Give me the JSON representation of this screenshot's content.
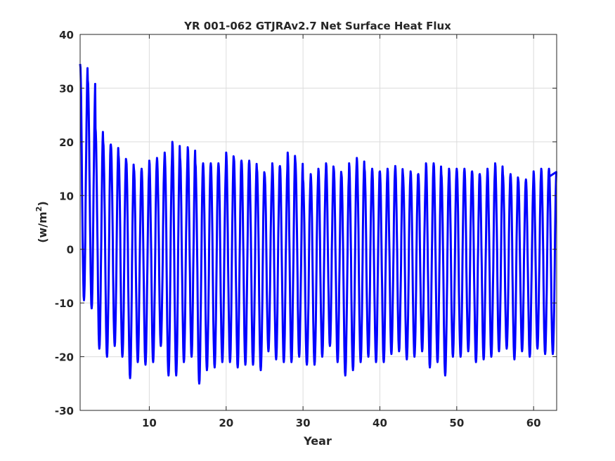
{
  "chart_data": {
    "type": "line",
    "title": "YR 001-062 GTJRAv2.7 Net Surface Heat Flux",
    "xlabel": "Year",
    "ylabel_base": "(w/m",
    "ylabel_sup": "2",
    "ylabel_close": ")",
    "xlim": [
      1,
      63
    ],
    "ylim": [
      -30,
      40
    ],
    "x_ticks": [
      10,
      20,
      30,
      40,
      50,
      60
    ],
    "x_tick_labels": [
      "10",
      "20",
      "30",
      "40",
      "50",
      "60"
    ],
    "y_ticks": [
      -30,
      -20,
      -10,
      0,
      10,
      20,
      30,
      40
    ],
    "y_tick_labels": [
      "-30",
      "-20",
      "-10",
      "0",
      "10",
      "20",
      "30",
      "40"
    ],
    "grid": true,
    "line_color": "#0000ff",
    "series": [
      {
        "years": [
          1,
          2,
          3,
          4,
          5,
          6,
          7,
          8,
          9,
          10,
          11,
          12,
          13,
          14,
          15,
          16,
          17,
          18,
          19,
          20,
          21,
          22,
          23,
          24,
          25,
          26,
          27,
          28,
          29,
          30,
          31,
          32,
          33,
          34,
          35,
          36,
          37,
          38,
          39,
          40,
          41,
          42,
          43,
          44,
          45,
          46,
          47,
          48,
          49,
          50,
          51,
          52,
          53,
          54,
          55,
          56,
          57,
          58,
          59,
          60,
          61,
          62
        ],
        "annual_max": [
          34.5,
          31.5,
          22.5,
          20,
          19.5,
          17.5,
          16.5,
          15,
          15,
          16.5,
          17,
          18,
          20,
          17,
          19,
          16,
          16,
          16,
          16,
          18,
          17,
          16.5,
          16.5,
          15,
          14,
          16,
          15.5,
          18,
          16.5,
          13,
          14,
          15,
          16,
          15,
          14,
          16,
          17,
          15,
          15,
          14.5,
          15,
          15.5,
          14,
          14.5,
          14,
          16,
          16,
          14,
          15,
          15,
          15,
          14.5,
          14,
          15,
          16,
          14,
          14,
          13,
          13,
          14.5,
          15,
          15
        ],
        "annual_min": [
          -9.5,
          -11,
          -18.5,
          -20,
          -18,
          -20,
          -24,
          -21,
          -21.5,
          -21,
          -18,
          -23.5,
          -23.5,
          -21,
          -20,
          -25,
          -22.5,
          -22,
          -21,
          -21,
          -22,
          -21.5,
          -21.5,
          -22.5,
          -19,
          -20.5,
          -21,
          -21,
          -20,
          -21.5,
          -21.5,
          -20,
          -18,
          -21,
          -23.5,
          -22.5,
          -21,
          -20,
          -21,
          -21,
          -19.5,
          -19,
          -20.5,
          -20,
          -19,
          -22,
          -21,
          -23.5,
          -20,
          -20,
          -19,
          -21,
          -20.5,
          -20,
          -19,
          -18.5,
          -20.5,
          -19,
          -20,
          -18.5,
          -19.5,
          -19.5
        ],
        "x": [
          62
        ],
        "y": [
          13.5
        ]
      }
    ]
  }
}
